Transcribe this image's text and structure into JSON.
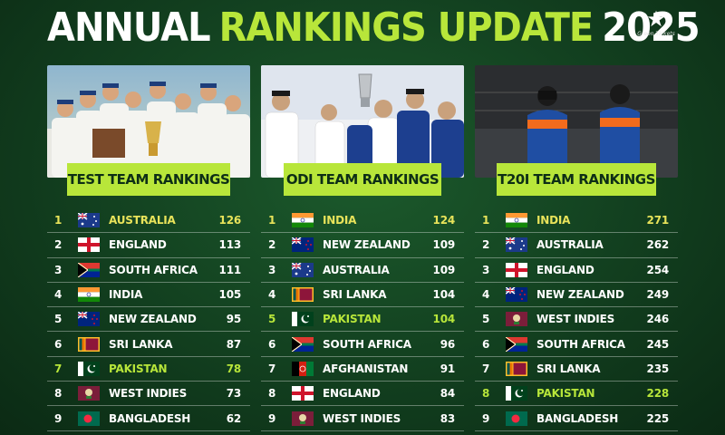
{
  "header": {
    "title_part1": "ANNUAL",
    "title_part2": "RANKINGS UPDATE",
    "title_part3": "2025",
    "logo_text": "Green Tickets"
  },
  "colors": {
    "accent": "#b8e63a",
    "highlight_first": "#e8e35a",
    "background": "#123f1f"
  },
  "panels": [
    {
      "title": "TEST TEAM RANKINGS",
      "rows": [
        {
          "rank": "1",
          "team": "AUSTRALIA",
          "points": "126",
          "flag": "australia-flag",
          "highlight": "yellow"
        },
        {
          "rank": "2",
          "team": "ENGLAND",
          "points": "113",
          "flag": "england-flag",
          "highlight": ""
        },
        {
          "rank": "3",
          "team": "SOUTH AFRICA",
          "points": "111",
          "flag": "south-africa-flag",
          "highlight": ""
        },
        {
          "rank": "4",
          "team": "INDIA",
          "points": "105",
          "flag": "india-flag",
          "highlight": ""
        },
        {
          "rank": "5",
          "team": "NEW ZEALAND",
          "points": "95",
          "flag": "new-zealand-flag",
          "highlight": ""
        },
        {
          "rank": "6",
          "team": "SRI LANKA",
          "points": "87",
          "flag": "sri-lanka-flag",
          "highlight": ""
        },
        {
          "rank": "7",
          "team": "PAKISTAN",
          "points": "78",
          "flag": "pakistan-flag",
          "highlight": "green"
        },
        {
          "rank": "8",
          "team": "WEST INDIES",
          "points": "73",
          "flag": "west-indies-flag",
          "highlight": ""
        },
        {
          "rank": "9",
          "team": "BANGLADESH",
          "points": "62",
          "flag": "bangladesh-flag",
          "highlight": ""
        }
      ]
    },
    {
      "title": "ODI TEAM RANKINGS",
      "rows": [
        {
          "rank": "1",
          "team": "INDIA",
          "points": "124",
          "flag": "india-flag",
          "highlight": "yellow"
        },
        {
          "rank": "2",
          "team": "NEW ZEALAND",
          "points": "109",
          "flag": "new-zealand-flag",
          "highlight": ""
        },
        {
          "rank": "3",
          "team": "AUSTRALIA",
          "points": "109",
          "flag": "australia-flag",
          "highlight": ""
        },
        {
          "rank": "4",
          "team": "SRI LANKA",
          "points": "104",
          "flag": "sri-lanka-flag",
          "highlight": ""
        },
        {
          "rank": "5",
          "team": "PAKISTAN",
          "points": "104",
          "flag": "pakistan-flag",
          "highlight": "green"
        },
        {
          "rank": "6",
          "team": "SOUTH AFRICA",
          "points": "96",
          "flag": "south-africa-flag",
          "highlight": ""
        },
        {
          "rank": "7",
          "team": "AFGHANISTAN",
          "points": "91",
          "flag": "afghanistan-flag",
          "highlight": ""
        },
        {
          "rank": "8",
          "team": "ENGLAND",
          "points": "84",
          "flag": "england-flag",
          "highlight": ""
        },
        {
          "rank": "9",
          "team": "WEST INDIES",
          "points": "83",
          "flag": "west-indies-flag",
          "highlight": ""
        }
      ]
    },
    {
      "title": "T20I TEAM RANKINGS",
      "rows": [
        {
          "rank": "1",
          "team": "INDIA",
          "points": "271",
          "flag": "india-flag",
          "highlight": "yellow"
        },
        {
          "rank": "2",
          "team": "AUSTRALIA",
          "points": "262",
          "flag": "australia-flag",
          "highlight": ""
        },
        {
          "rank": "3",
          "team": "ENGLAND",
          "points": "254",
          "flag": "england-flag",
          "highlight": ""
        },
        {
          "rank": "4",
          "team": "NEW ZEALAND",
          "points": "249",
          "flag": "new-zealand-flag",
          "highlight": ""
        },
        {
          "rank": "5",
          "team": "WEST INDIES",
          "points": "246",
          "flag": "west-indies-flag",
          "highlight": ""
        },
        {
          "rank": "6",
          "team": "SOUTH AFRICA",
          "points": "245",
          "flag": "south-africa-flag",
          "highlight": ""
        },
        {
          "rank": "7",
          "team": "SRI LANKA",
          "points": "235",
          "flag": "sri-lanka-flag",
          "highlight": ""
        },
        {
          "rank": "8",
          "team": "PAKISTAN",
          "points": "228",
          "flag": "pakistan-flag",
          "highlight": "green"
        },
        {
          "rank": "9",
          "team": "BANGLADESH",
          "points": "225",
          "flag": "bangladesh-flag",
          "highlight": ""
        }
      ]
    }
  ]
}
